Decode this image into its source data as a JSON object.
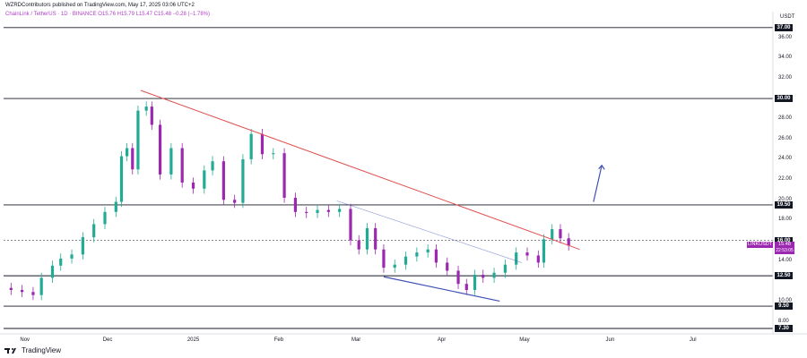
{
  "header": {
    "publisher": "WZRDContributors published on TradingView.com, May 17, 2025 03:06 UTC+2",
    "symbol_line": "ChainLink / TetherUS · 1D · BINANCE  O15.76  H15.79  L15.47  C15.48  −0.28 (−1.78%)"
  },
  "footer": {
    "brand": "TradingView",
    "logo_icon": "tradingview-logo-icon"
  },
  "price_axis": {
    "currency": "USDT",
    "ticks": [
      "36.00",
      "34.00",
      "32.00",
      "28.00",
      "26.00",
      "24.00",
      "22.00",
      "20.00",
      "18.00",
      "14.00",
      "10.00",
      "8.00"
    ]
  },
  "time_axis": {
    "ticks": [
      "Nov",
      "Dec",
      "2025",
      "Feb",
      "Mar",
      "Apr",
      "May",
      "Jun",
      "Jul"
    ]
  },
  "current_price": {
    "symbol": "LINKUSDT",
    "price": "15.48",
    "countdown": "22:53:05"
  },
  "levels": [
    "37.00",
    "30.00",
    "19.50",
    "16.00",
    "12.50",
    "9.50",
    "7.30"
  ],
  "colors": {
    "bull": "#22ab94",
    "bear": "#9c27b0",
    "resistance": "#e05050",
    "channel": "#3f51b5",
    "arrow": "#3f51b5",
    "level": "#131722"
  },
  "chart_data": {
    "type": "candlestick",
    "symbol": "LINKUSDT",
    "timeframe": "1D",
    "exchange": "BINANCE",
    "ylim": [
      7.3,
      37.6
    ],
    "x_range": [
      "2024-10-23",
      "2025-07-30"
    ],
    "horizontal_levels": [
      37.0,
      30.0,
      19.5,
      16.0,
      12.5,
      9.5,
      7.3
    ],
    "close_series": [
      [
        "2024-10-23",
        11.3
      ],
      [
        "2024-10-27",
        11.1
      ],
      [
        "2024-10-31",
        10.9
      ],
      [
        "2024-11-04",
        10.6
      ],
      [
        "2024-11-07",
        12.3
      ],
      [
        "2024-11-11",
        13.5
      ],
      [
        "2024-11-14",
        14.2
      ],
      [
        "2024-11-18",
        14.6
      ],
      [
        "2024-11-22",
        16.3
      ],
      [
        "2024-11-26",
        17.6
      ],
      [
        "2024-11-30",
        18.8
      ],
      [
        "2024-12-04",
        19.8
      ],
      [
        "2024-12-06",
        24.3
      ],
      [
        "2024-12-08",
        25.1
      ],
      [
        "2024-12-10",
        23.0
      ],
      [
        "2024-12-12",
        28.8
      ],
      [
        "2024-12-15",
        29.2
      ],
      [
        "2024-12-17",
        27.4
      ],
      [
        "2024-12-20",
        22.5
      ],
      [
        "2024-12-24",
        25.1
      ],
      [
        "2024-12-28",
        21.7
      ],
      [
        "2025-01-01",
        21.1
      ],
      [
        "2025-01-05",
        22.9
      ],
      [
        "2025-01-08",
        23.8
      ],
      [
        "2025-01-12",
        20.0
      ],
      [
        "2025-01-16",
        19.7
      ],
      [
        "2025-01-19",
        24.0
      ],
      [
        "2025-01-22",
        26.5
      ],
      [
        "2025-01-26",
        24.5
      ],
      [
        "2025-01-30",
        24.6
      ],
      [
        "2025-02-03",
        20.2
      ],
      [
        "2025-02-07",
        18.8
      ],
      [
        "2025-02-11",
        18.7
      ],
      [
        "2025-02-15",
        19.0
      ],
      [
        "2025-02-19",
        18.8
      ],
      [
        "2025-02-23",
        19.1
      ],
      [
        "2025-02-27",
        16.0
      ],
      [
        "2025-03-02",
        15.1
      ],
      [
        "2025-03-05",
        17.2
      ],
      [
        "2025-03-08",
        15.1
      ],
      [
        "2025-03-11",
        13.3
      ],
      [
        "2025-03-15",
        13.6
      ],
      [
        "2025-03-19",
        14.4
      ],
      [
        "2025-03-23",
        14.8
      ],
      [
        "2025-03-27",
        15.1
      ],
      [
        "2025-03-30",
        13.8
      ],
      [
        "2025-04-03",
        13.0
      ],
      [
        "2025-04-07",
        11.7
      ],
      [
        "2025-04-10",
        11.1
      ],
      [
        "2025-04-13",
        12.6
      ],
      [
        "2025-04-16",
        12.3
      ],
      [
        "2025-04-20",
        12.8
      ],
      [
        "2025-04-24",
        13.6
      ],
      [
        "2025-04-28",
        14.8
      ],
      [
        "2025-05-02",
        14.5
      ],
      [
        "2025-05-06",
        13.8
      ],
      [
        "2025-05-08",
        16.1
      ],
      [
        "2025-05-11",
        17.1
      ],
      [
        "2025-05-14",
        16.2
      ],
      [
        "2025-05-17",
        15.48
      ]
    ],
    "resistance_trendline": [
      [
        "2024-12-13",
        30.8
      ],
      [
        "2025-05-21",
        15.1
      ]
    ],
    "falling_channel_upper": [
      [
        "2025-02-22",
        19.9
      ],
      [
        "2025-04-30",
        13.8
      ]
    ],
    "falling_channel_lower": [
      [
        "2025-03-11",
        12.4
      ],
      [
        "2025-04-22",
        10.0
      ]
    ],
    "projection_arrow": [
      [
        "2025-05-26",
        19.8
      ],
      [
        "2025-05-29",
        23.4
      ]
    ]
  }
}
